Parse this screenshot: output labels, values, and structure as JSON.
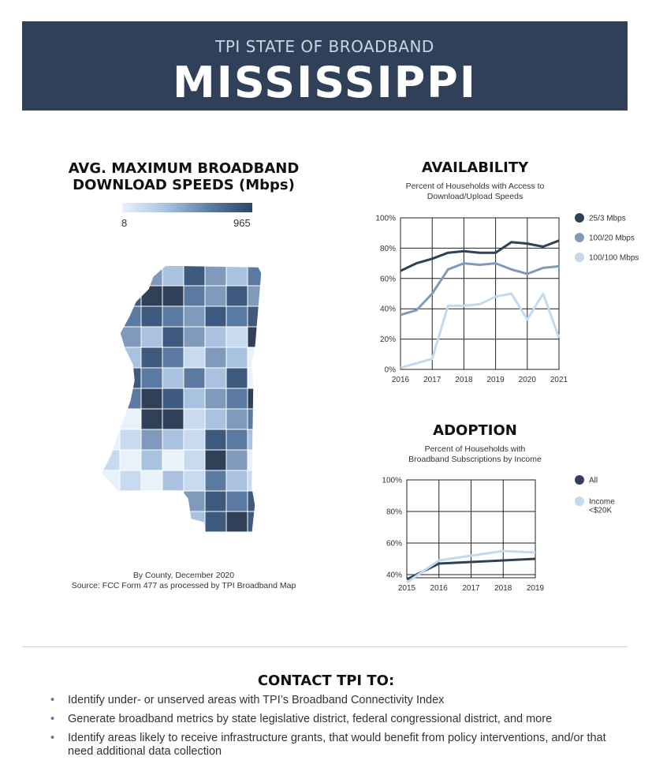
{
  "header": {
    "subtitle": "TPI STATE OF BROADBAND",
    "title": "MISSISSIPPI"
  },
  "map": {
    "title_line1": "AVG. MAXIMUM BROADBAND",
    "title_line2": "DOWNLOAD SPEEDS (Mbps)",
    "scale_min": "8",
    "scale_max": "965",
    "note_line1": "By County, December 2020",
    "note_line2": "Source: FCC Form 477 as processed by TPI Broadband Map"
  },
  "colors": {
    "dark": "#2f4058",
    "mid": "#7f9abb",
    "light": "#c3d9f0",
    "banner": "#2f4058"
  },
  "chart_data": [
    {
      "type": "line",
      "title": "AVAILABILITY",
      "subtitle_line1": "Percent of Households with Access to",
      "subtitle_line2": "Download/Upload Speeds",
      "x": [
        2016,
        2016.5,
        2017,
        2017.5,
        2018,
        2018.5,
        2019,
        2019.5,
        2020,
        2020.5,
        2021
      ],
      "xticks": [
        "2016",
        "2017",
        "2018",
        "2019",
        "2020",
        "2021"
      ],
      "yticks": [
        "0%",
        "20%",
        "40%",
        "60%",
        "80%",
        "100%"
      ],
      "ylim": [
        0,
        100
      ],
      "grid": true,
      "legend_position": "right",
      "series": [
        {
          "name": "25/3 Mbps",
          "color": "#2f4058",
          "values": [
            65,
            70,
            73,
            77,
            78,
            77,
            77,
            84,
            83,
            81,
            85
          ]
        },
        {
          "name": "100/20 Mbps",
          "color": "#7f9abb",
          "values": [
            36,
            39,
            50,
            66,
            70,
            69,
            70,
            66,
            63,
            67,
            68
          ]
        },
        {
          "name": "100/100 Mbps",
          "color": "#c3d9f0",
          "values": [
            1,
            4,
            7,
            42,
            42,
            43,
            48,
            50,
            33,
            50,
            21
          ]
        }
      ]
    },
    {
      "type": "line",
      "title": "ADOPTION",
      "subtitle_line1": "Percent of Households with",
      "subtitle_line2": "Broadband Subscriptions by Income",
      "x": [
        2015,
        2016,
        2017,
        2018,
        2019
      ],
      "xticks": [
        "2015",
        "2016",
        "2017",
        "2018",
        "2019"
      ],
      "yticks": [
        "40%",
        "60%",
        "80%",
        "100%"
      ],
      "ylim": [
        38,
        100
      ],
      "grid": true,
      "legend_position": "right",
      "series": [
        {
          "name": "All",
          "color": "#2f4058",
          "values": [
            37,
            47,
            48,
            49,
            50
          ]
        },
        {
          "name": "Income <$20K",
          "color": "#c3d9f0",
          "values": [
            35,
            49,
            52,
            55,
            54
          ]
        }
      ]
    }
  ],
  "contact": {
    "heading": "CONTACT TPI TO:",
    "items": [
      "Identify under- or unserved areas with TPI’s Broadband Connectivity Index",
      "Generate broadband metrics by state legislative district, federal congressional district, and more",
      "Identify areas likely to receive infrastructure grants, that would benefit from policy interventions, and/or that need additional data collection"
    ]
  }
}
